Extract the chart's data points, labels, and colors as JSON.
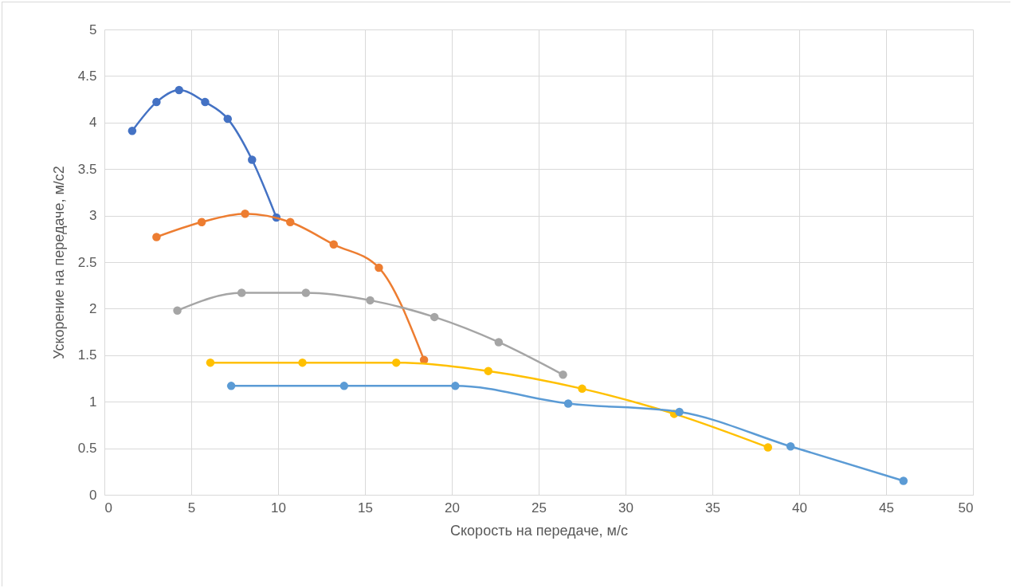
{
  "chart_data": {
    "type": "line",
    "xlabel": "Скорость на передаче, м/с",
    "ylabel": "Ускорение на передаче, м/с2",
    "xlim": [
      0,
      50
    ],
    "xticks": [
      0,
      5,
      10,
      15,
      20,
      25,
      30,
      35,
      40,
      45,
      50
    ],
    "ylim": [
      0,
      5
    ],
    "yticks": [
      0,
      0.5,
      1,
      1.5,
      2,
      2.5,
      3,
      3.5,
      4,
      4.5,
      5
    ],
    "grid": true,
    "marker": "circle",
    "line_style": "solid",
    "series": [
      {
        "color": "#4472c4",
        "x": [
          1.6,
          3.0,
          4.3,
          5.8,
          7.1,
          8.5,
          9.9
        ],
        "values": [
          3.91,
          4.22,
          4.35,
          4.22,
          4.04,
          3.6,
          2.98
        ]
      },
      {
        "color": "#ed7d31",
        "x": [
          3.0,
          5.6,
          8.1,
          10.7,
          13.2,
          15.8,
          18.4
        ],
        "values": [
          2.77,
          2.93,
          3.02,
          2.93,
          2.69,
          2.44,
          1.45
        ]
      },
      {
        "color": "#a5a5a5",
        "x": [
          4.2,
          7.9,
          11.6,
          15.3,
          19.0,
          22.7,
          26.4
        ],
        "values": [
          1.98,
          2.17,
          2.17,
          2.09,
          1.91,
          1.64,
          1.29
        ]
      },
      {
        "color": "#ffc000",
        "x": [
          6.1,
          11.4,
          16.8,
          22.1,
          27.5,
          32.8,
          38.2
        ],
        "values": [
          1.42,
          1.42,
          1.42,
          1.33,
          1.14,
          0.87,
          0.51
        ]
      },
      {
        "color": "#5b9bd5",
        "x": [
          7.3,
          13.8,
          20.2,
          26.7,
          33.1,
          39.5,
          46.0
        ],
        "values": [
          1.17,
          1.17,
          1.17,
          0.98,
          0.89,
          0.52,
          0.15
        ]
      }
    ]
  }
}
